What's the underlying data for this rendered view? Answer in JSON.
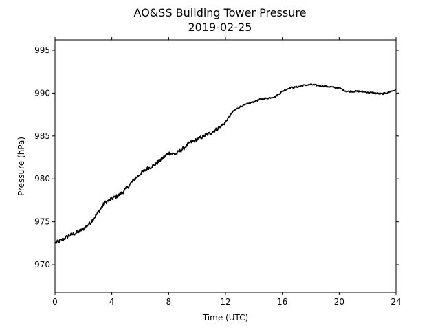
{
  "chart_data": {
    "type": "line",
    "title": "AO&SS Building Tower Pressure",
    "subtitle": "2019-02-25",
    "xlabel": "Time (UTC)",
    "ylabel": "Pressure (hPa)",
    "xlim": [
      0,
      24
    ],
    "ylim": [
      966.8,
      996.2
    ],
    "x_ticks": [
      0,
      4,
      8,
      12,
      16,
      20,
      24
    ],
    "y_ticks": [
      970,
      975,
      980,
      985,
      990,
      995
    ],
    "grid": false,
    "legend": "none",
    "line_color": "#000000",
    "series": [
      {
        "x": [
          0,
          0.5,
          1,
          1.5,
          2,
          2.5,
          3,
          3.5,
          4,
          4.5,
          5,
          5.5,
          6,
          6.5,
          7,
          7.5,
          8,
          8.5,
          9,
          9.5,
          10,
          10.5,
          11,
          11.5,
          12,
          12.5,
          13,
          13.5,
          14,
          14.5,
          15,
          15.5,
          16,
          16.5,
          17,
          17.5,
          18,
          18.5,
          19,
          19.5,
          20,
          20.5,
          21,
          21.5,
          22,
          22.5,
          23,
          23.5,
          24
        ],
        "y": [
          972.5,
          972.9,
          973.4,
          973.7,
          974.2,
          974.9,
          976.0,
          977.2,
          977.7,
          978.1,
          978.8,
          979.8,
          980.6,
          981.2,
          981.6,
          982.3,
          983.0,
          982.9,
          983.5,
          984.2,
          984.6,
          985.0,
          985.4,
          985.9,
          986.6,
          987.8,
          988.4,
          988.7,
          989.0,
          989.3,
          989.4,
          989.6,
          990.2,
          990.6,
          990.7,
          990.9,
          991.0,
          990.9,
          990.8,
          990.7,
          990.6,
          990.2,
          990.2,
          990.2,
          990.1,
          990.0,
          989.9,
          990.1,
          990.4
        ]
      }
    ]
  }
}
